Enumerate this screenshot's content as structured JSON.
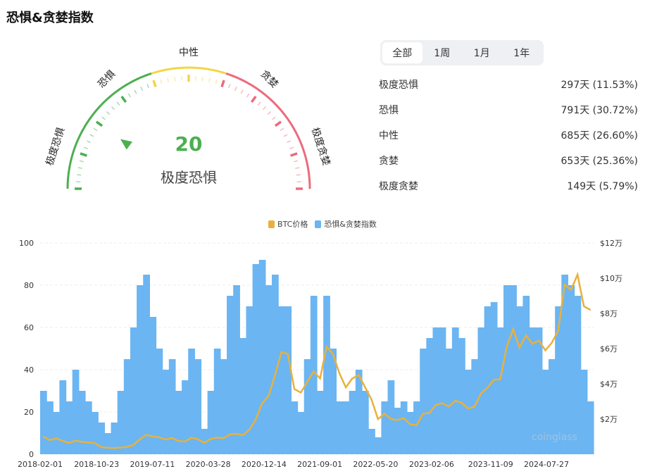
{
  "title": "恐惧&贪婪指数",
  "gauge": {
    "value": 20,
    "value_text": "20",
    "status": "极度恐惧",
    "zones": [
      "极度恐惧",
      "恐惧",
      "中性",
      "贪婪",
      "极度贪婪"
    ],
    "colors": {
      "fear": "#4caf50",
      "neutral": "#f5d547",
      "greed": "#ec6b7b"
    }
  },
  "tabs": [
    {
      "label": "全部",
      "active": true
    },
    {
      "label": "1周"
    },
    {
      "label": "1月"
    },
    {
      "label": "1年"
    }
  ],
  "stats": [
    {
      "label": "极度恐惧",
      "value": "297天 (11.53%)"
    },
    {
      "label": "恐惧",
      "value": "791天 (30.72%)"
    },
    {
      "label": "中性",
      "value": "685天 (26.60%)"
    },
    {
      "label": "贪婪",
      "value": "653天 (25.36%)"
    },
    {
      "label": "极度贪婪",
      "value": "149天 (5.79%)"
    }
  ],
  "watermark": "coinglass",
  "chart_data": {
    "type": "bar+line",
    "legend": [
      {
        "name": "BTC价格",
        "color": "#e8b13e"
      },
      {
        "name": "恐惧&贪婪指数",
        "color": "#6bb5f2"
      }
    ],
    "legend_position": "top",
    "x_ticks": [
      "2018-02-01",
      "2018-10-23",
      "2019-07-11",
      "2020-03-28",
      "2020-12-14",
      "2021-09-01",
      "2022-05-20",
      "2023-02-06",
      "2023-11-09",
      "2024-07-27"
    ],
    "y_left": {
      "ticks": [
        "0",
        "20",
        "40",
        "60",
        "80",
        "100"
      ],
      "range": [
        0,
        100
      ]
    },
    "y_right": {
      "ticks": [
        "$2万",
        "$4万",
        "$6万",
        "$8万",
        "$10万",
        "$12万"
      ],
      "range": [
        0,
        120000
      ]
    },
    "grid": true,
    "months": [
      "2018-02",
      "2018-03",
      "2018-04",
      "2018-05",
      "2018-06",
      "2018-07",
      "2018-08",
      "2018-09",
      "2018-10",
      "2018-11",
      "2018-12",
      "2019-01",
      "2019-02",
      "2019-03",
      "2019-04",
      "2019-05",
      "2019-06",
      "2019-07",
      "2019-08",
      "2019-09",
      "2019-10",
      "2019-11",
      "2019-12",
      "2020-01",
      "2020-02",
      "2020-03",
      "2020-04",
      "2020-05",
      "2020-06",
      "2020-07",
      "2020-08",
      "2020-09",
      "2020-10",
      "2020-11",
      "2020-12",
      "2021-01",
      "2021-02",
      "2021-03",
      "2021-04",
      "2021-05",
      "2021-06",
      "2021-07",
      "2021-08",
      "2021-09",
      "2021-10",
      "2021-11",
      "2021-12",
      "2022-01",
      "2022-02",
      "2022-03",
      "2022-04",
      "2022-05",
      "2022-06",
      "2022-07",
      "2022-08",
      "2022-09",
      "2022-10",
      "2022-11",
      "2022-12",
      "2023-01",
      "2023-02",
      "2023-03",
      "2023-04",
      "2023-05",
      "2023-06",
      "2023-07",
      "2023-08",
      "2023-09",
      "2023-10",
      "2023-11",
      "2023-12",
      "2024-01",
      "2024-02",
      "2024-03",
      "2024-04",
      "2024-05",
      "2024-06",
      "2024-07",
      "2024-08",
      "2024-09",
      "2024-10",
      "2024-11",
      "2024-12",
      "2025-01",
      "2025-02",
      "2025-03"
    ],
    "series": [
      {
        "name": "恐惧&贪婪指数",
        "type": "bar",
        "values": [
          30,
          25,
          20,
          35,
          25,
          40,
          30,
          25,
          20,
          15,
          10,
          15,
          30,
          45,
          60,
          80,
          85,
          65,
          50,
          40,
          45,
          30,
          35,
          50,
          45,
          12,
          30,
          50,
          45,
          75,
          80,
          55,
          70,
          90,
          92,
          80,
          85,
          70,
          70,
          25,
          20,
          45,
          75,
          30,
          75,
          50,
          25,
          25,
          30,
          40,
          30,
          12,
          8,
          25,
          35,
          22,
          25,
          20,
          25,
          50,
          55,
          60,
          60,
          50,
          60,
          55,
          40,
          45,
          60,
          70,
          72,
          60,
          80,
          80,
          70,
          75,
          60,
          60,
          40,
          45,
          70,
          85,
          80,
          75,
          40,
          25
        ]
      },
      {
        "name": "BTC价格",
        "type": "line",
        "values": [
          10000,
          8000,
          9000,
          7500,
          6300,
          7700,
          7000,
          6600,
          6300,
          4000,
          3700,
          3500,
          3800,
          4100,
          5300,
          8500,
          11000,
          10000,
          9600,
          8300,
          9200,
          7500,
          7200,
          9300,
          8600,
          6400,
          8700,
          9500,
          9100,
          11300,
          11600,
          10800,
          13800,
          19700,
          29000,
          33000,
          45000,
          58000,
          57000,
          37000,
          35000,
          41000,
          47000,
          43000,
          61000,
          57000,
          46000,
          38000,
          43000,
          45000,
          38000,
          31000,
          19900,
          23000,
          20000,
          19400,
          20500,
          17000,
          16500,
          23000,
          23500,
          28000,
          29000,
          27000,
          30400,
          29200,
          26000,
          27000,
          34500,
          37700,
          42300,
          42500,
          61000,
          71000,
          60600,
          67500,
          62700,
          64600,
          59000,
          63300,
          70200,
          96400,
          93400,
          102000,
          84000,
          82000
        ]
      }
    ]
  }
}
